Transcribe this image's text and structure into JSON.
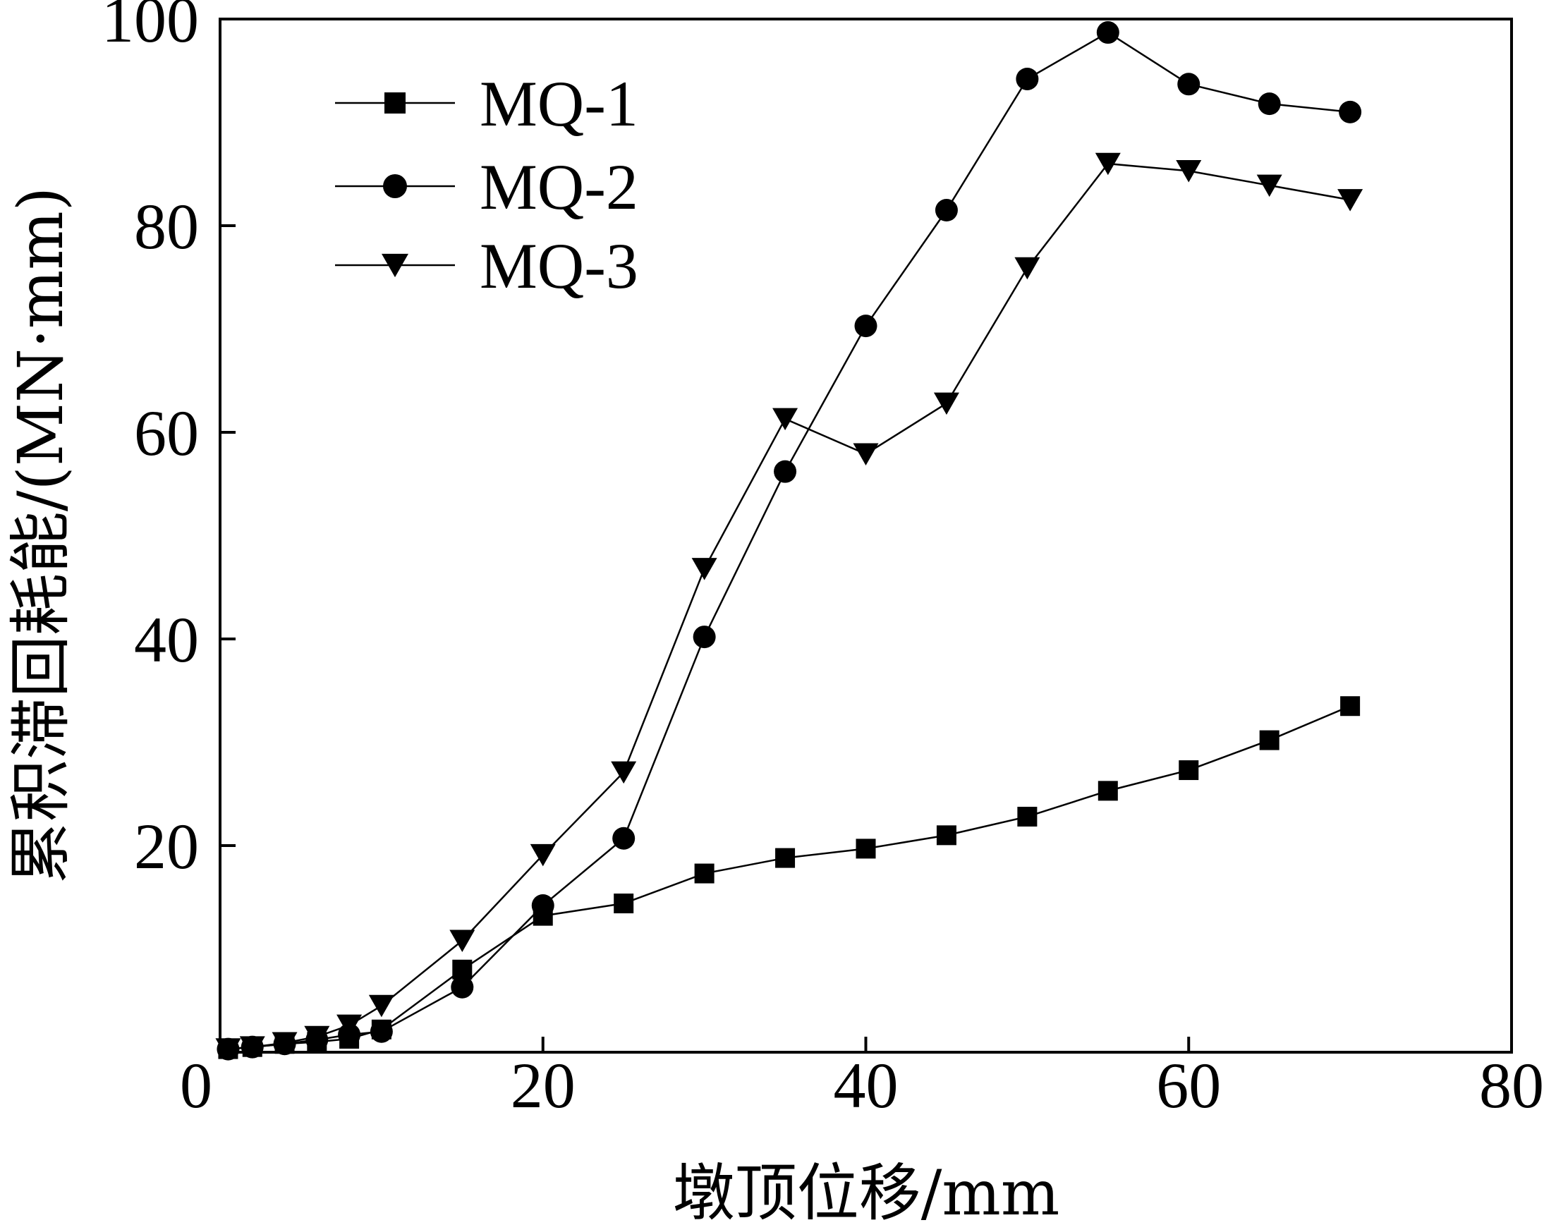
{
  "chart_data": {
    "type": "line",
    "title": "",
    "xlabel": "墩顶位移/mm",
    "ylabel": "累积滞回耗能/(MN·mm)",
    "xlim": [
      0,
      80
    ],
    "ylim": [
      0,
      100
    ],
    "xticks": [
      "0",
      "20",
      "40",
      "60",
      "80"
    ],
    "yticks": [
      "20",
      "40",
      "60",
      "80",
      "100"
    ],
    "xtick_values": [
      0,
      20,
      40,
      60,
      80
    ],
    "ytick_values": [
      20,
      40,
      60,
      80,
      100
    ],
    "grid": false,
    "legend_position": "top-left",
    "series": [
      {
        "name": "MQ-1",
        "marker": "square",
        "color": "#000000",
        "x": [
          0.5,
          2,
          4,
          6,
          8,
          10,
          15,
          20,
          25,
          30,
          35,
          40,
          45,
          50,
          55,
          60,
          65,
          70
        ],
        "y": [
          0.3,
          0.5,
          0.8,
          1.0,
          1.3,
          2.2,
          8.0,
          13.2,
          14.4,
          17.3,
          18.8,
          19.7,
          21.0,
          22.8,
          25.3,
          27.3,
          30.2,
          33.5
        ]
      },
      {
        "name": "MQ-2",
        "marker": "circle",
        "color": "#000000",
        "x": [
          0.5,
          2,
          4,
          6,
          8,
          10,
          15,
          20,
          25,
          30,
          35,
          40,
          45,
          50,
          55,
          60,
          65,
          70
        ],
        "y": [
          0.3,
          0.5,
          0.8,
          1.2,
          1.7,
          2.0,
          6.3,
          14.2,
          20.7,
          40.2,
          56.2,
          70.3,
          81.5,
          94.2,
          98.7,
          93.7,
          91.8,
          91.0
        ]
      },
      {
        "name": "MQ-3",
        "marker": "triangle-down",
        "color": "#000000",
        "x": [
          0.5,
          2,
          4,
          6,
          8,
          10,
          15,
          20,
          25,
          30,
          35,
          40,
          45,
          50,
          55,
          60,
          65,
          70
        ],
        "y": [
          0.3,
          0.5,
          0.9,
          1.5,
          2.6,
          4.5,
          10.8,
          19.1,
          27.1,
          46.8,
          61.3,
          57.9,
          62.8,
          75.9,
          86.0,
          85.3,
          83.9,
          82.5
        ]
      }
    ]
  }
}
